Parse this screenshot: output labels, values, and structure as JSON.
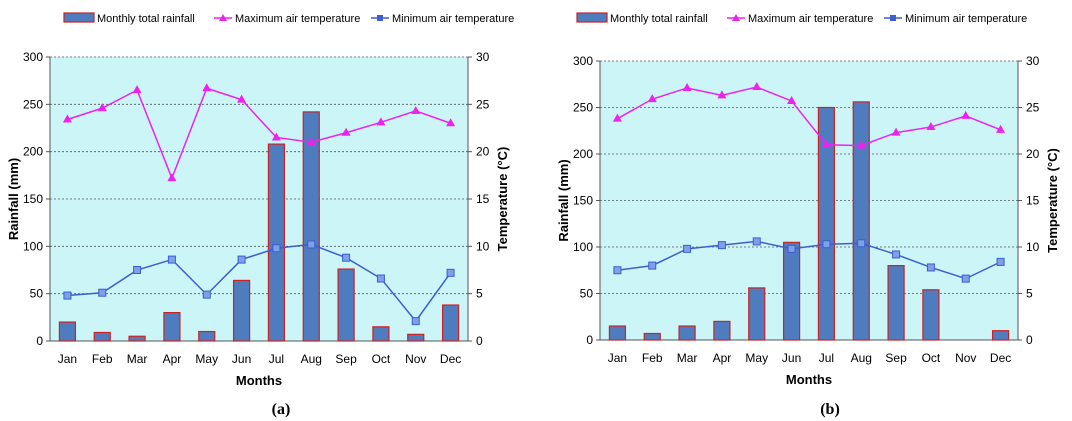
{
  "colors": {
    "plot_bg": "#ccf5f7",
    "bar_fill": "#4f7cbf",
    "bar_border": "#cc2222",
    "max_line": "#ee22ee",
    "min_line": "#3b5fd0",
    "grid": "#555555"
  },
  "legend": {
    "rain": "Monthly total rainfall",
    "max": "Maximum air temperature",
    "min": "Minimum air temperature"
  },
  "chart_data": [
    {
      "type": "bar",
      "panel_label": "(a)",
      "xlabel": "Months",
      "ylabel": "Rainfall (mm)",
      "y2label": "Temperature (°C)",
      "ylim": [
        0,
        300
      ],
      "y2lim": [
        0,
        30
      ],
      "yticks": [
        "0",
        "50",
        "100",
        "150",
        "200",
        "250",
        "300"
      ],
      "y2ticks": [
        "0",
        "5",
        "10",
        "15",
        "20",
        "25",
        "30"
      ],
      "categories": [
        "Jan",
        "Feb",
        "Mar",
        "Apr",
        "May",
        "Jun",
        "Jul",
        "Aug",
        "Sep",
        "Oct",
        "Nov",
        "Dec"
      ],
      "grid": true,
      "legend_position": "top",
      "series": [
        {
          "name": "Monthly total rainfall",
          "kind": "bar",
          "axis": "left",
          "values": [
            20,
            9,
            5,
            30,
            10,
            64,
            208,
            242,
            76,
            15,
            7,
            38
          ]
        },
        {
          "name": "Maximum air temperature",
          "kind": "line",
          "axis": "right",
          "values": [
            23.4,
            24.6,
            26.5,
            17.2,
            26.7,
            25.5,
            21.5,
            21.0,
            22.0,
            23.1,
            24.3,
            23.0
          ]
        },
        {
          "name": "Minimum air temperature",
          "kind": "line",
          "axis": "right",
          "values": [
            4.8,
            5.1,
            7.5,
            8.6,
            4.9,
            8.6,
            9.8,
            10.2,
            8.8,
            6.6,
            2.1,
            7.2
          ]
        }
      ]
    },
    {
      "type": "bar",
      "panel_label": "(b)",
      "xlabel": "Months",
      "ylabel": "Rainfall (mm)",
      "y2label": "Temperature (°C)",
      "ylim": [
        0,
        300
      ],
      "y2lim": [
        0,
        30
      ],
      "yticks": [
        "0",
        "50",
        "100",
        "150",
        "200",
        "250",
        "300"
      ],
      "y2ticks": [
        "0",
        "5",
        "10",
        "15",
        "20",
        "25",
        "30"
      ],
      "categories": [
        "Jan",
        "Feb",
        "Mar",
        "Apr",
        "May",
        "Jun",
        "Jul",
        "Aug",
        "Sep",
        "Oct",
        "Nov",
        "Dec"
      ],
      "grid": true,
      "legend_position": "top",
      "series": [
        {
          "name": "Monthly total rainfall",
          "kind": "bar",
          "axis": "left",
          "values": [
            15,
            7,
            15,
            20,
            56,
            105,
            250,
            256,
            80,
            54,
            0,
            10
          ]
        },
        {
          "name": "Maximum air temperature",
          "kind": "line",
          "axis": "right",
          "values": [
            23.8,
            25.9,
            27.1,
            26.3,
            27.2,
            25.7,
            21.0,
            20.9,
            22.3,
            22.9,
            24.1,
            22.6
          ]
        },
        {
          "name": "Minimum air temperature",
          "kind": "line",
          "axis": "right",
          "values": [
            7.5,
            8.0,
            9.8,
            10.2,
            10.6,
            9.8,
            10.3,
            10.4,
            9.2,
            7.8,
            6.6,
            8.4
          ]
        }
      ]
    }
  ]
}
